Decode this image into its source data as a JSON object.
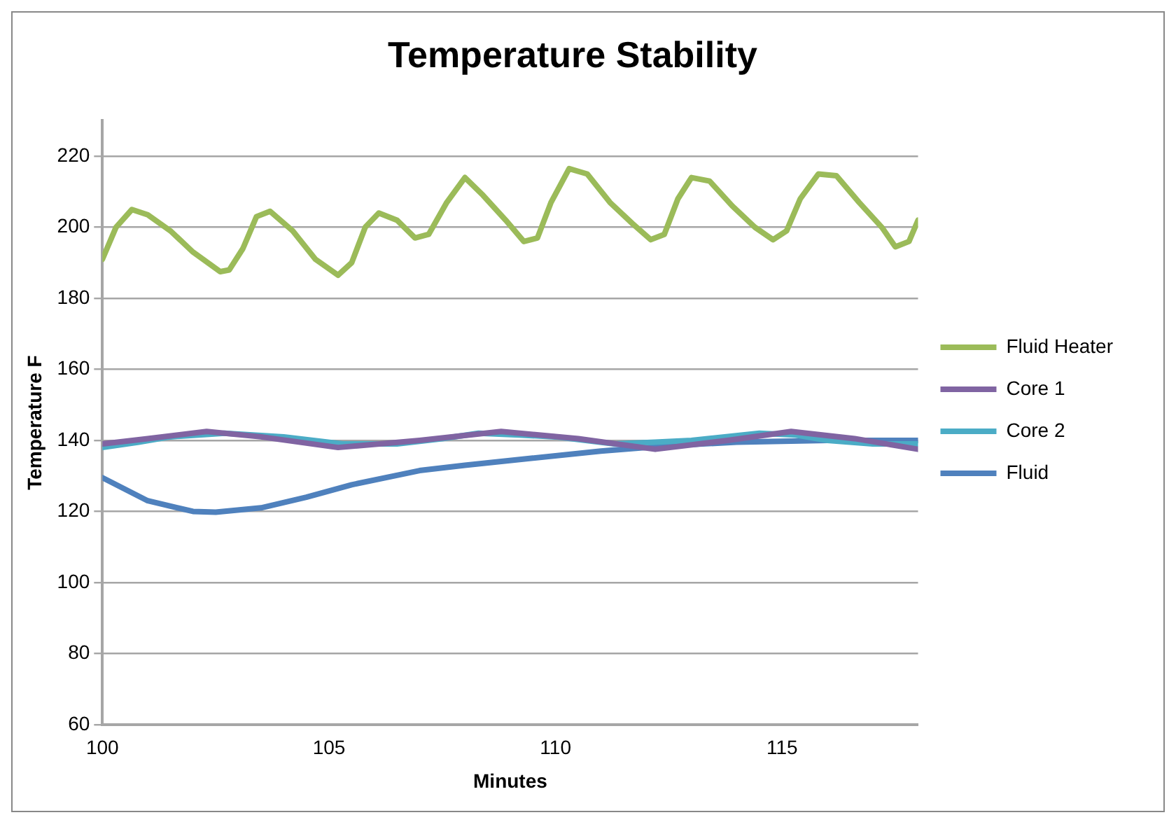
{
  "chart_data": {
    "type": "line",
    "title": "Temperature Stability",
    "xlabel": "Minutes",
    "ylabel": "Temperature F",
    "xlim": [
      100,
      118
    ],
    "xticks": [
      100,
      105,
      110,
      115
    ],
    "ylim": [
      60,
      230
    ],
    "yticks": [
      60,
      80,
      100,
      120,
      140,
      160,
      180,
      200,
      220
    ],
    "grid": "y",
    "legend": "right",
    "marker": "none",
    "line_style": "solid",
    "series": [
      {
        "name": "Fluid Heater",
        "color": "#9bbb59",
        "x": [
          100,
          100.3,
          100.65,
          101,
          101.5,
          102,
          102.6,
          102.8,
          103.1,
          103.4,
          103.7,
          104.2,
          104.7,
          105.2,
          105.5,
          105.8,
          106.1,
          106.5,
          106.9,
          107.2,
          107.6,
          108,
          108.4,
          108.9,
          109.3,
          109.6,
          109.9,
          110.3,
          110.7,
          111.2,
          111.7,
          112.1,
          112.4,
          112.7,
          113,
          113.4,
          113.9,
          114.4,
          114.8,
          115.1,
          115.4,
          115.8,
          116.2,
          116.7,
          117.2,
          117.5,
          117.8,
          118
        ],
        "values": [
          191,
          200,
          205,
          203.5,
          199,
          193,
          187.5,
          188,
          194,
          203,
          204.5,
          199,
          191,
          186.5,
          190,
          200,
          204,
          202,
          197,
          198,
          207,
          214,
          209,
          202,
          196,
          197,
          207,
          216.5,
          215,
          207,
          201,
          196.5,
          198,
          208,
          214,
          213,
          206,
          200,
          196.5,
          199,
          208,
          215,
          214.5,
          207,
          200,
          194.5,
          196,
          202
        ]
      },
      {
        "name": "Core 1",
        "color": "#8064a2",
        "x": [
          100,
          101,
          102.3,
          103.5,
          105.2,
          107,
          108.8,
          110.5,
          112.2,
          113.8,
          115.2,
          116.6,
          118
        ],
        "values": [
          139,
          140.5,
          142.5,
          141,
          138,
          140,
          142.5,
          140.5,
          137.5,
          140,
          142.5,
          140.5,
          137.5
        ]
      },
      {
        "name": "Core 2",
        "color": "#4bacc6",
        "x": [
          100,
          100.8,
          101.5,
          102.7,
          104,
          105.3,
          106.5,
          107.5,
          108.3,
          109.2,
          110,
          111.3,
          112.2,
          113,
          114.5,
          115.3,
          116,
          117,
          118
        ],
        "values": [
          138,
          139.5,
          141,
          142,
          141,
          139,
          139,
          140.5,
          142,
          141.5,
          141,
          139,
          139.5,
          140,
          142,
          141.5,
          140,
          139,
          139
        ]
      },
      {
        "name": "Fluid",
        "color": "#4f81bd",
        "x": [
          100,
          101,
          102,
          102.5,
          103.5,
          104.5,
          105.5,
          107,
          108,
          109.5,
          111,
          112.5,
          114,
          116,
          118
        ],
        "values": [
          129.5,
          123,
          120,
          119.8,
          121,
          124,
          127.5,
          131.5,
          133,
          135,
          137,
          138.5,
          139.5,
          140,
          140
        ]
      }
    ]
  }
}
